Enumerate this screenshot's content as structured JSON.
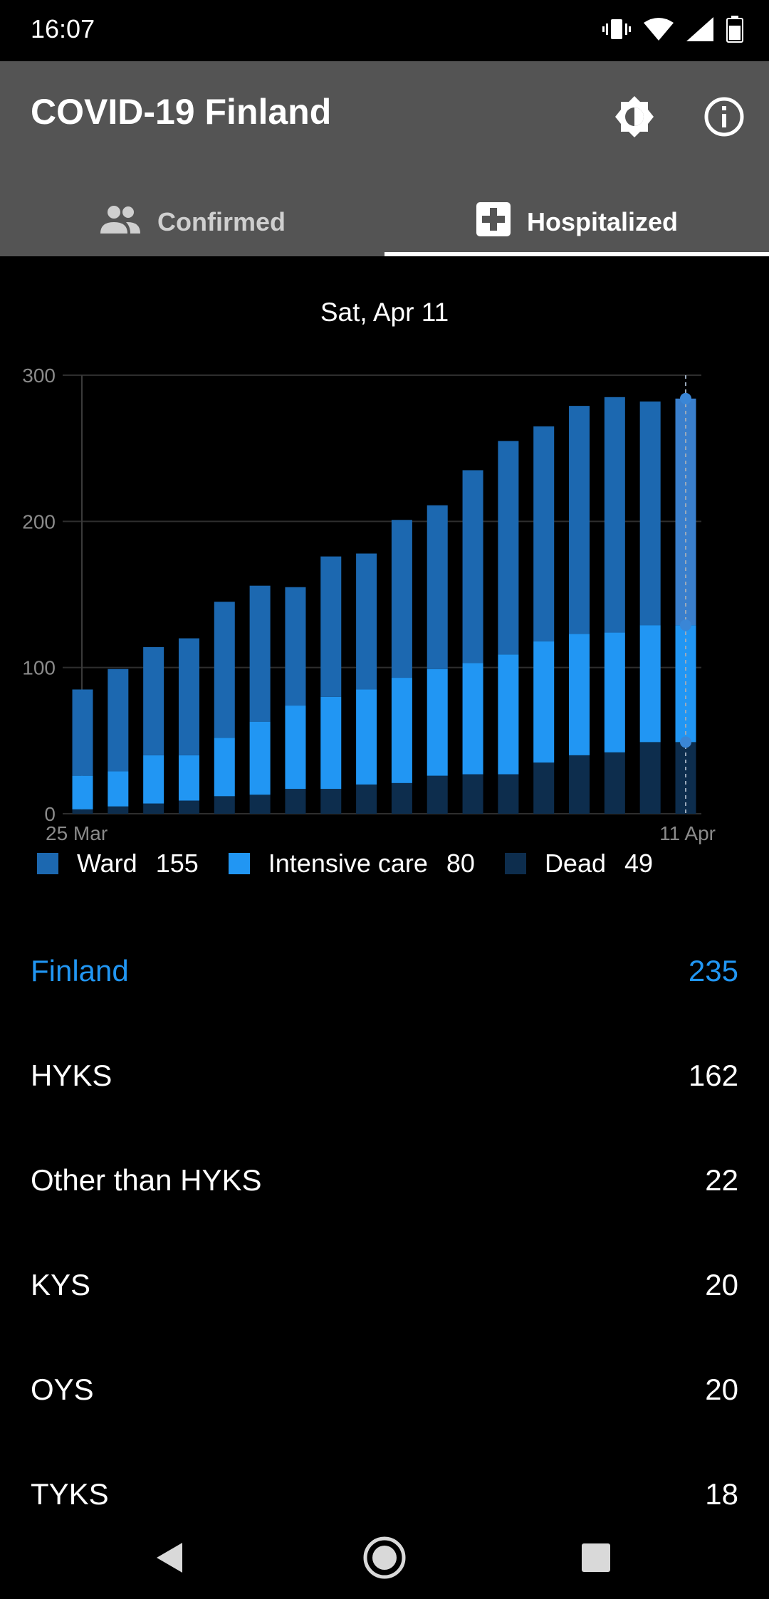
{
  "status_bar": {
    "time": "16:07",
    "icons": [
      "vibrate-icon",
      "wifi-icon",
      "signal-icon",
      "battery-icon"
    ]
  },
  "app_bar": {
    "title": "COVID-19 Finland",
    "actions": [
      "brightness-icon",
      "info-icon"
    ],
    "background": "#545454"
  },
  "tabs": [
    {
      "label": "Confirmed",
      "icon": "people-icon",
      "selected": false
    },
    {
      "label": "Hospitalized",
      "icon": "hospital-icon",
      "selected": true
    }
  ],
  "chart_header": {
    "selected_date": "Sat, Apr 11"
  },
  "chart_data": {
    "type": "bar",
    "stacked": true,
    "x_start_label": "25 Mar",
    "x_end_label": "11 Apr",
    "y_ticks": [
      "0",
      "100",
      "200",
      "300"
    ],
    "ylim": [
      0,
      300
    ],
    "grid": true,
    "colors": {
      "ward": "#1c68b0",
      "intensive_care": "#2196f3",
      "dead": "#0d2d4d",
      "selected": "#3a7fcc"
    },
    "series": [
      {
        "name": "Ward",
        "values": [
          59,
          70,
          74,
          80,
          93,
          93,
          81,
          96,
          93,
          108,
          112,
          132,
          146,
          147,
          156,
          161,
          153,
          155
        ]
      },
      {
        "name": "Intensive care",
        "values": [
          23,
          24,
          33,
          31,
          40,
          50,
          57,
          63,
          65,
          72,
          73,
          76,
          82,
          83,
          83,
          82,
          80,
          80
        ]
      },
      {
        "name": "Dead",
        "values": [
          3,
          5,
          7,
          9,
          12,
          13,
          17,
          17,
          20,
          21,
          26,
          27,
          27,
          35,
          40,
          42,
          49,
          49
        ]
      }
    ],
    "selected_index": 17
  },
  "legend": [
    {
      "label": "Ward",
      "value": "155",
      "color": "#1c68b0"
    },
    {
      "label": "Intensive care",
      "value": "80",
      "color": "#2196f3"
    },
    {
      "label": "Dead",
      "value": "49",
      "color": "#0d2d4d"
    }
  ],
  "regions": [
    {
      "name": "Finland",
      "value": "235",
      "highlight": true
    },
    {
      "name": "HYKS",
      "value": "162",
      "highlight": false
    },
    {
      "name": "Other than HYKS",
      "value": "22",
      "highlight": false
    },
    {
      "name": "KYS",
      "value": "20",
      "highlight": false
    },
    {
      "name": "OYS",
      "value": "20",
      "highlight": false
    },
    {
      "name": "TYKS",
      "value": "18",
      "highlight": false
    }
  ],
  "nav_bar": [
    "back-icon",
    "home-icon",
    "recents-icon"
  ]
}
